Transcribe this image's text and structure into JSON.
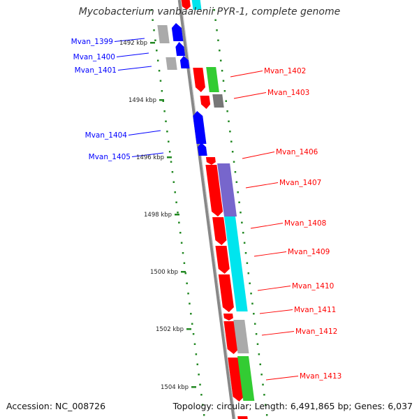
{
  "title": "Mycobacterium vanbaalenii PYR-1, complete genome",
  "accession": "Accession: NC_008726",
  "summary": "Topology: circular; Length: 6,491,865 bp; Genes: 6,037",
  "colors": {
    "forward": "#ff0000",
    "reverse": "#0000ff",
    "grey": "#aaaaaa",
    "green": "#33cc33",
    "purple": "#7766cc",
    "cyan": "#00e5ee",
    "scale_dots": "#228822",
    "backbone": "#888888"
  },
  "scale_ticks": [
    {
      "label": "1492 kbp"
    },
    {
      "label": "1494 kbp"
    },
    {
      "label": "1496 kbp"
    },
    {
      "label": "1498 kbp"
    },
    {
      "label": "1500 kbp"
    },
    {
      "label": "1502 kbp"
    },
    {
      "label": "1504 kbp"
    }
  ],
  "genes": [
    {
      "name": "Mvan_1399",
      "strand": "reverse"
    },
    {
      "name": "Mvan_1400",
      "strand": "reverse"
    },
    {
      "name": "Mvan_1401",
      "strand": "reverse"
    },
    {
      "name": "Mvan_1402",
      "strand": "forward"
    },
    {
      "name": "Mvan_1403",
      "strand": "forward"
    },
    {
      "name": "Mvan_1404",
      "strand": "reverse"
    },
    {
      "name": "Mvan_1405",
      "strand": "reverse"
    },
    {
      "name": "Mvan_1406",
      "strand": "forward"
    },
    {
      "name": "Mvan_1407",
      "strand": "forward"
    },
    {
      "name": "Mvan_1408",
      "strand": "forward"
    },
    {
      "name": "Mvan_1409",
      "strand": "forward"
    },
    {
      "name": "Mvan_1410",
      "strand": "forward"
    },
    {
      "name": "Mvan_1411",
      "strand": "forward"
    },
    {
      "name": "Mvan_1412",
      "strand": "forward"
    },
    {
      "name": "Mvan_1413",
      "strand": "forward"
    }
  ]
}
